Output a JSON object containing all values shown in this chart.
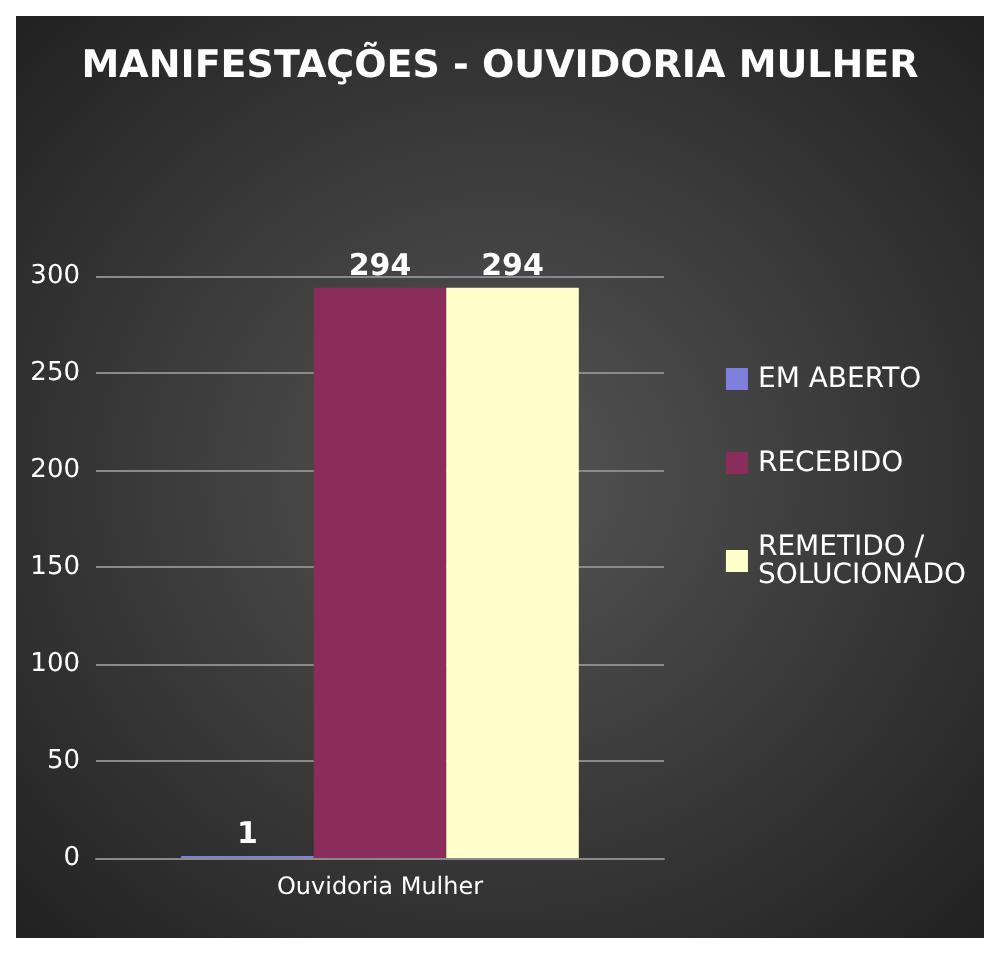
{
  "chart_data": {
    "type": "bar",
    "title": "MANIFESTAÇÕES - OUVIDORIA MULHER",
    "categories": [
      "Ouvidoria Mulher"
    ],
    "series": [
      {
        "name": "EM ABERTO",
        "color": "#7f7fdd",
        "values": [
          1
        ]
      },
      {
        "name": "RECEBIDO",
        "color": "#8a2d5b",
        "values": [
          294
        ]
      },
      {
        "name": "REMETIDO / SOLUCIONADO",
        "color": "#ffffcc",
        "values": [
          294
        ]
      }
    ],
    "ylim": [
      0,
      300
    ],
    "yticks": [
      0,
      50,
      100,
      150,
      200,
      250,
      300
    ],
    "grid": "y",
    "legend": "right",
    "data_labels": true
  }
}
